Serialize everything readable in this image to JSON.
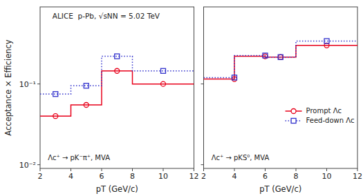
{
  "chart_data": [
    {
      "type": "line",
      "header": "ALICE  p-Pb, √sNN = 5.02 TeV",
      "panel_label": "Λc⁺ → pK⁻π⁺, MVA",
      "x_label": "pT (GeV/c)",
      "y_label": "Acceptance × Efficiency",
      "log": "y",
      "xlim": [
        2.0,
        12.0
      ],
      "xticks": [
        2,
        4,
        6,
        8,
        10,
        12
      ],
      "ylim": [
        0.009,
        0.9
      ],
      "yticks": [
        {
          "value": 0.01,
          "label": "10⁻²"
        },
        {
          "value": 0.1,
          "label": "10⁻¹"
        }
      ],
      "series": [
        {
          "type": "step",
          "color": "#e8001a",
          "line_style": "solid",
          "x": [
            2.0,
            3.0,
            4.0,
            5.0,
            6.0,
            7.0,
            8.0,
            10.0,
            12.0
          ],
          "values": [
            0.04,
            0.04,
            0.055,
            0.055,
            0.145,
            0.145,
            0.1,
            0.1,
            0.1
          ]
        },
        {
          "type": "step",
          "color": "#3030cc",
          "line_style": "dotted",
          "x": [
            2.0,
            3.0,
            4.0,
            5.0,
            6.0,
            7.0,
            8.0,
            10.0,
            12.0
          ],
          "values": [
            0.075,
            0.075,
            0.095,
            0.095,
            0.22,
            0.22,
            0.145,
            0.145,
            0.145
          ]
        },
        {
          "type": "scatter",
          "color": "#e8001a",
          "marker": "circle",
          "x": [
            3.0,
            5.0,
            7.0,
            10.0
          ],
          "values": [
            0.04,
            0.055,
            0.145,
            0.1
          ]
        },
        {
          "type": "scatter",
          "color": "#3030cc",
          "marker": "square",
          "x": [
            3.0,
            5.0,
            7.0,
            10.0
          ],
          "values": [
            0.075,
            0.095,
            0.22,
            0.145
          ]
        }
      ]
    },
    {
      "type": "line",
      "panel_label": "Λc⁺ → pKS⁰, MVA",
      "x_label": "pT (GeV/c)",
      "log": "y",
      "tick_labels": "x",
      "legend": "lower right",
      "xlim": [
        2.0,
        12.0
      ],
      "xticks": [
        2,
        4,
        6,
        8,
        10,
        12
      ],
      "ylim": [
        0.009,
        0.9
      ],
      "yticks": [
        {
          "value": 0.01,
          "label": "10⁻²"
        },
        {
          "value": 0.1,
          "label": "10⁻¹"
        }
      ],
      "series": [
        {
          "name": "Prompt Λc",
          "type": "step",
          "color": "#e8001a",
          "line_style": "solid",
          "x": [
            2.0,
            3.5,
            4.0,
            5.0,
            6.0,
            7.0,
            8.0,
            9.0,
            12.0
          ],
          "values": [
            0.115,
            0.115,
            0.22,
            0.22,
            0.215,
            0.215,
            0.3,
            0.3,
            0.3
          ]
        },
        {
          "name": "Feed-down Λc",
          "type": "step",
          "color": "#3030cc",
          "line_style": "dotted",
          "x": [
            2.0,
            3.5,
            4.0,
            5.0,
            6.0,
            7.0,
            8.0,
            9.0,
            12.0
          ],
          "values": [
            0.12,
            0.12,
            0.225,
            0.225,
            0.215,
            0.215,
            0.34,
            0.34,
            0.34
          ]
        },
        {
          "type": "scatter",
          "color": "#e8001a",
          "marker": "circle",
          "x": [
            4.0,
            6.0,
            7.0,
            10.0
          ],
          "values": [
            0.115,
            0.22,
            0.215,
            0.3
          ]
        },
        {
          "type": "scatter",
          "color": "#3030cc",
          "marker": "square",
          "x": [
            4.0,
            6.0,
            7.0,
            10.0
          ],
          "values": [
            0.12,
            0.225,
            0.215,
            0.34
          ]
        }
      ]
    }
  ]
}
